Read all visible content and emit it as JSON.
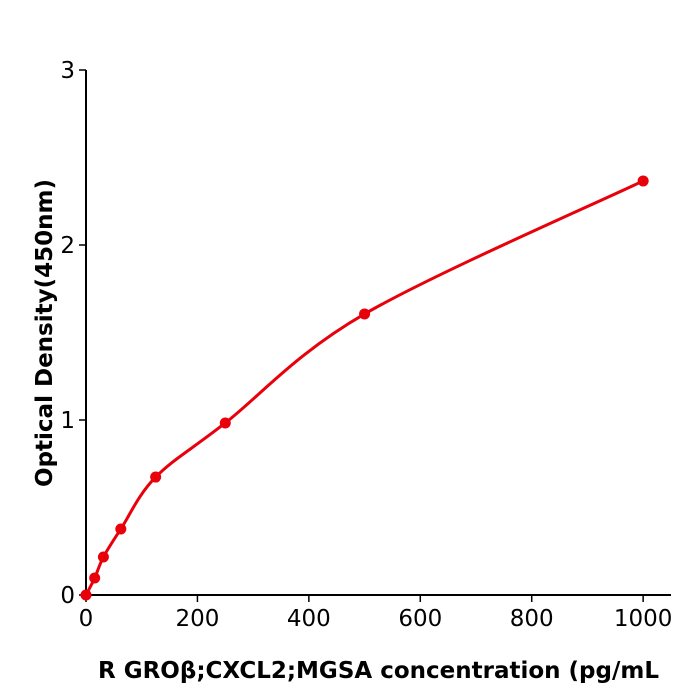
{
  "chart_data": {
    "type": "scatter",
    "title": "",
    "xlabel": "R  GROβ;CXCL2;MGSA concentration (pg/mL",
    "ylabel": "Optical Density(450nm)",
    "xlim": [
      0,
      1050
    ],
    "ylim": [
      0,
      3
    ],
    "xticks": [
      0,
      200,
      400,
      600,
      800,
      1000
    ],
    "yticks": [
      0,
      1,
      2,
      3
    ],
    "grid": false,
    "legend": "none",
    "fit_curve": true,
    "color": "#e8000b",
    "series": [
      {
        "x": [
          0,
          15.6,
          31.25,
          62.5,
          125,
          250,
          500,
          1000
        ],
        "y": [
          0.0,
          0.097,
          0.217,
          0.377,
          0.674,
          0.983,
          1.606,
          2.366
        ]
      }
    ]
  }
}
